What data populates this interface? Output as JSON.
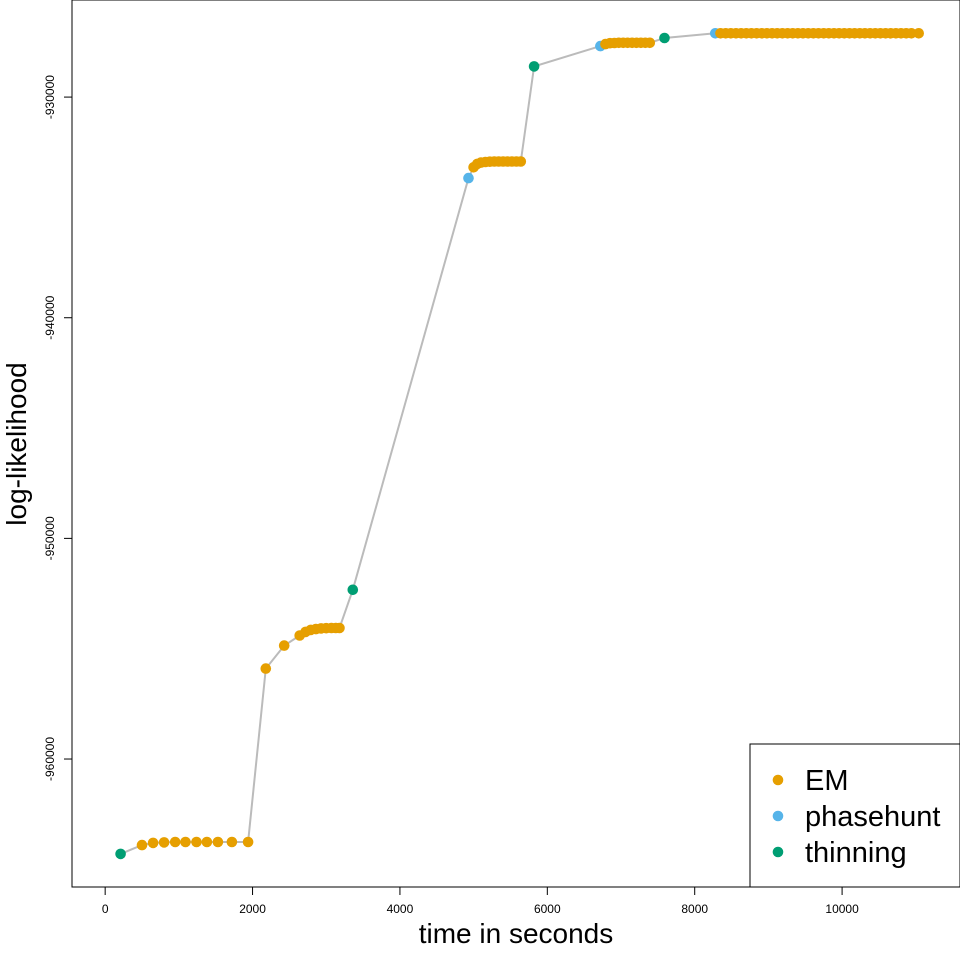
{
  "chart_data": {
    "type": "scatter",
    "title": "",
    "xlabel": "time in seconds",
    "ylabel": "log-likelihood",
    "xlim": [
      -450,
      11600
    ],
    "ylim": [
      -965800,
      -925600
    ],
    "xticks": [
      0,
      2000,
      4000,
      6000,
      8000,
      10000
    ],
    "xtick_labels": [
      "0",
      "2000",
      "4000",
      "6000",
      "8000",
      "10000"
    ],
    "yticks": [
      -960000,
      -950000,
      -940000,
      -930000
    ],
    "ytick_labels": [
      "-960000",
      "-950000",
      "-940000",
      "-930000"
    ],
    "grid": false,
    "legend_position": "bottom-right",
    "connector_color": "#bbbbbb",
    "series": [
      {
        "name": "EM",
        "color": "#E69F00"
      },
      {
        "name": "phasehunt",
        "color": "#56B4E9"
      },
      {
        "name": "thinning",
        "color": "#009E73"
      }
    ],
    "points": [
      {
        "x": 210,
        "y": -964300,
        "s": "thinning"
      },
      {
        "x": 500,
        "y": -963900,
        "s": "EM"
      },
      {
        "x": 650,
        "y": -963800,
        "s": "EM"
      },
      {
        "x": 800,
        "y": -963780,
        "s": "EM"
      },
      {
        "x": 950,
        "y": -963760,
        "s": "EM"
      },
      {
        "x": 1090,
        "y": -963760,
        "s": "EM"
      },
      {
        "x": 1240,
        "y": -963760,
        "s": "EM"
      },
      {
        "x": 1380,
        "y": -963760,
        "s": "EM"
      },
      {
        "x": 1530,
        "y": -963760,
        "s": "EM"
      },
      {
        "x": 1720,
        "y": -963760,
        "s": "EM"
      },
      {
        "x": 1940,
        "y": -963760,
        "s": "EM"
      },
      {
        "x": 2180,
        "y": -955900,
        "s": "EM"
      },
      {
        "x": 2430,
        "y": -954860,
        "s": "EM"
      },
      {
        "x": 2640,
        "y": -954400,
        "s": "EM"
      },
      {
        "x": 2720,
        "y": -954240,
        "s": "EM"
      },
      {
        "x": 2790,
        "y": -954150,
        "s": "EM"
      },
      {
        "x": 2860,
        "y": -954110,
        "s": "EM"
      },
      {
        "x": 2930,
        "y": -954080,
        "s": "EM"
      },
      {
        "x": 3000,
        "y": -954070,
        "s": "EM"
      },
      {
        "x": 3070,
        "y": -954060,
        "s": "EM"
      },
      {
        "x": 3130,
        "y": -954060,
        "s": "EM"
      },
      {
        "x": 3180,
        "y": -954060,
        "s": "EM"
      },
      {
        "x": 3360,
        "y": -952330,
        "s": "thinning"
      },
      {
        "x": 4930,
        "y": -933670,
        "s": "phasehunt"
      },
      {
        "x": 5000,
        "y": -933180,
        "s": "EM"
      },
      {
        "x": 5050,
        "y": -933030,
        "s": "EM"
      },
      {
        "x": 5100,
        "y": -932970,
        "s": "EM"
      },
      {
        "x": 5160,
        "y": -932940,
        "s": "EM"
      },
      {
        "x": 5220,
        "y": -932930,
        "s": "EM"
      },
      {
        "x": 5280,
        "y": -932920,
        "s": "EM"
      },
      {
        "x": 5340,
        "y": -932920,
        "s": "EM"
      },
      {
        "x": 5400,
        "y": -932920,
        "s": "EM"
      },
      {
        "x": 5460,
        "y": -932920,
        "s": "EM"
      },
      {
        "x": 5520,
        "y": -932920,
        "s": "EM"
      },
      {
        "x": 5580,
        "y": -932920,
        "s": "EM"
      },
      {
        "x": 5640,
        "y": -932920,
        "s": "EM"
      },
      {
        "x": 5820,
        "y": -928610,
        "s": "thinning"
      },
      {
        "x": 6720,
        "y": -927690,
        "s": "phasehunt"
      },
      {
        "x": 6790,
        "y": -927600,
        "s": "EM"
      },
      {
        "x": 6850,
        "y": -927560,
        "s": "EM"
      },
      {
        "x": 6910,
        "y": -927550,
        "s": "EM"
      },
      {
        "x": 6970,
        "y": -927540,
        "s": "EM"
      },
      {
        "x": 7030,
        "y": -927540,
        "s": "EM"
      },
      {
        "x": 7090,
        "y": -927540,
        "s": "EM"
      },
      {
        "x": 7150,
        "y": -927540,
        "s": "EM"
      },
      {
        "x": 7210,
        "y": -927540,
        "s": "EM"
      },
      {
        "x": 7270,
        "y": -927540,
        "s": "EM"
      },
      {
        "x": 7330,
        "y": -927540,
        "s": "EM"
      },
      {
        "x": 7390,
        "y": -927540,
        "s": "EM"
      },
      {
        "x": 7590,
        "y": -927320,
        "s": "thinning"
      },
      {
        "x": 8280,
        "y": -927110,
        "s": "phasehunt"
      },
      {
        "x": 8350,
        "y": -927110,
        "s": "EM"
      },
      {
        "x": 8420,
        "y": -927110,
        "s": "EM"
      },
      {
        "x": 8490,
        "y": -927110,
        "s": "EM"
      },
      {
        "x": 8560,
        "y": -927110,
        "s": "EM"
      },
      {
        "x": 8630,
        "y": -927110,
        "s": "EM"
      },
      {
        "x": 8700,
        "y": -927110,
        "s": "EM"
      },
      {
        "x": 8770,
        "y": -927110,
        "s": "EM"
      },
      {
        "x": 8840,
        "y": -927110,
        "s": "EM"
      },
      {
        "x": 8910,
        "y": -927110,
        "s": "EM"
      },
      {
        "x": 8980,
        "y": -927110,
        "s": "EM"
      },
      {
        "x": 9050,
        "y": -927110,
        "s": "EM"
      },
      {
        "x": 9120,
        "y": -927110,
        "s": "EM"
      },
      {
        "x": 9190,
        "y": -927110,
        "s": "EM"
      },
      {
        "x": 9260,
        "y": -927110,
        "s": "EM"
      },
      {
        "x": 9330,
        "y": -927110,
        "s": "EM"
      },
      {
        "x": 9400,
        "y": -927110,
        "s": "EM"
      },
      {
        "x": 9470,
        "y": -927110,
        "s": "EM"
      },
      {
        "x": 9540,
        "y": -927110,
        "s": "EM"
      },
      {
        "x": 9610,
        "y": -927110,
        "s": "EM"
      },
      {
        "x": 9680,
        "y": -927110,
        "s": "EM"
      },
      {
        "x": 9750,
        "y": -927110,
        "s": "EM"
      },
      {
        "x": 9820,
        "y": -927110,
        "s": "EM"
      },
      {
        "x": 9890,
        "y": -927110,
        "s": "EM"
      },
      {
        "x": 9960,
        "y": -927110,
        "s": "EM"
      },
      {
        "x": 10030,
        "y": -927110,
        "s": "EM"
      },
      {
        "x": 10100,
        "y": -927110,
        "s": "EM"
      },
      {
        "x": 10170,
        "y": -927110,
        "s": "EM"
      },
      {
        "x": 10240,
        "y": -927110,
        "s": "EM"
      },
      {
        "x": 10310,
        "y": -927110,
        "s": "EM"
      },
      {
        "x": 10380,
        "y": -927110,
        "s": "EM"
      },
      {
        "x": 10450,
        "y": -927110,
        "s": "EM"
      },
      {
        "x": 10520,
        "y": -927110,
        "s": "EM"
      },
      {
        "x": 10590,
        "y": -927110,
        "s": "EM"
      },
      {
        "x": 10660,
        "y": -927110,
        "s": "EM"
      },
      {
        "x": 10730,
        "y": -927110,
        "s": "EM"
      },
      {
        "x": 10800,
        "y": -927110,
        "s": "EM"
      },
      {
        "x": 10870,
        "y": -927110,
        "s": "EM"
      },
      {
        "x": 10940,
        "y": -927110,
        "s": "EM"
      },
      {
        "x": 11040,
        "y": -927110,
        "s": "EM"
      }
    ]
  }
}
